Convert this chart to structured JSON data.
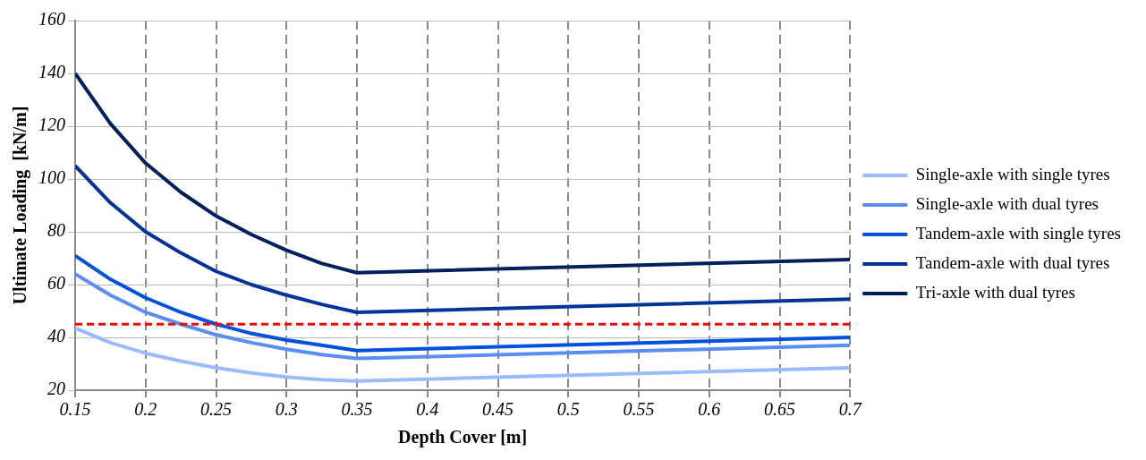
{
  "chart_data": {
    "type": "line",
    "xlabel": "Depth Cover [m]",
    "ylabel": "Ultimate Loading  [kN/m]",
    "x": [
      0.15,
      0.175,
      0.2,
      0.225,
      0.25,
      0.275,
      0.3,
      0.325,
      0.35,
      0.7
    ],
    "series": [
      {
        "name": "Single-axle with single tyres",
        "color": "#99bbff",
        "values": [
          43.5,
          38,
          34,
          31,
          28.5,
          26.5,
          25,
          24,
          23.5,
          28.5
        ]
      },
      {
        "name": "Single-axle with dual tyres",
        "color": "#5a8ef5",
        "values": [
          64,
          56,
          49.5,
          45,
          41,
          38,
          35.5,
          33.5,
          32,
          37
        ]
      },
      {
        "name": "Tandem-axle with single tyres",
        "color": "#0050e0",
        "values": [
          71,
          62,
          55,
          49.5,
          45,
          41.5,
          39,
          37,
          35,
          40
        ]
      },
      {
        "name": "Tandem-axle with dual tyres",
        "color": "#003399",
        "values": [
          105,
          91,
          80,
          72,
          65,
          60,
          56,
          52.5,
          49.5,
          54.5
        ]
      },
      {
        "name": "Tri-axle with dual tyres",
        "color": "#001f5c",
        "values": [
          140,
          121,
          106,
          95,
          86,
          79,
          73,
          68,
          64.5,
          69.5
        ]
      }
    ],
    "xlim": [
      0.15,
      0.7
    ],
    "xticks": [
      0.15,
      0.2,
      0.25,
      0.3,
      0.35,
      0.4,
      0.45,
      0.5,
      0.55,
      0.6,
      0.65,
      0.7
    ],
    "ylim": [
      20,
      160
    ],
    "yticks": [
      20,
      40,
      60,
      80,
      100,
      120,
      140,
      160
    ],
    "ref_lines": [
      {
        "axis": "y",
        "value": 45,
        "color": "#ff0000",
        "line_style": "dashed"
      }
    ],
    "grid": true,
    "legend": "right",
    "marker": "none",
    "line_style": "solid"
  }
}
